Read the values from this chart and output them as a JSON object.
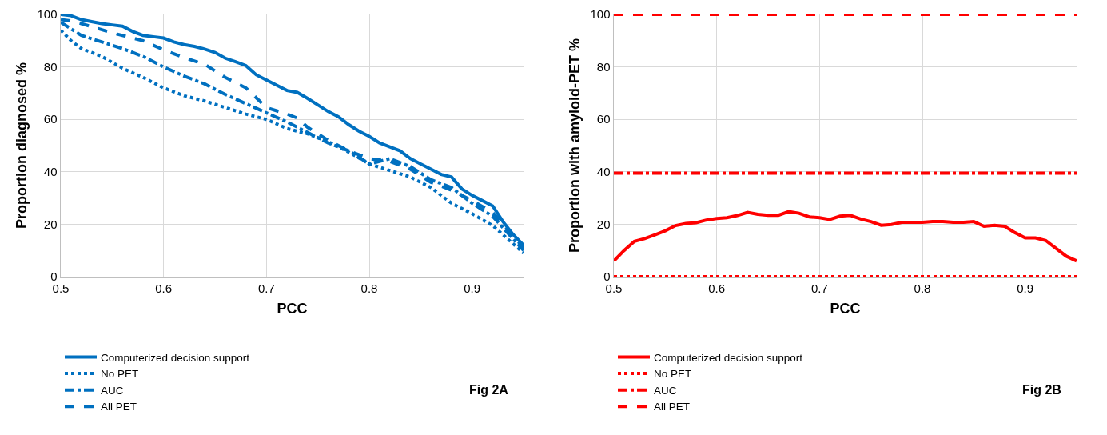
{
  "chart_data": [
    {
      "type": "line",
      "xlabel": "PCC",
      "ylabel": "Proportion diagnosed %",
      "xlim": [
        0.5,
        0.95
      ],
      "xticks": [
        0.5,
        0.6,
        0.7,
        0.8,
        0.9
      ],
      "ylim": [
        0,
        100
      ],
      "yticks": [
        0,
        20,
        40,
        60,
        80,
        100
      ],
      "grid": true,
      "legend": "bottom left",
      "marker": "none",
      "annotations": [
        "Fig 2A"
      ],
      "series": [
        {
          "name": "Computerized decision support",
          "color": "#0070c0",
          "line_style": "solid",
          "x": [
            0.5,
            0.51,
            0.52,
            0.54,
            0.55,
            0.56,
            0.57,
            0.58,
            0.59,
            0.6,
            0.61,
            0.62,
            0.63,
            0.64,
            0.65,
            0.66,
            0.67,
            0.68,
            0.69,
            0.7,
            0.71,
            0.72,
            0.73,
            0.74,
            0.75,
            0.76,
            0.77,
            0.78,
            0.79,
            0.8,
            0.81,
            0.82,
            0.83,
            0.84,
            0.85,
            0.86,
            0.87,
            0.88,
            0.89,
            0.9,
            0.91,
            0.92,
            0.93,
            0.94,
            0.95
          ],
          "values": [
            100,
            99.5,
            98,
            96.5,
            96,
            95.5,
            93.5,
            92,
            91.5,
            91,
            89.5,
            88.5,
            87.8,
            86.8,
            85.5,
            83.3,
            82,
            80.5,
            77,
            75,
            73,
            71,
            70.3,
            68,
            65.5,
            63,
            61,
            58,
            55.5,
            53.5,
            51,
            49.5,
            48,
            45,
            43,
            41,
            39,
            38,
            33.5,
            31,
            29,
            27,
            21,
            16,
            12
          ]
        },
        {
          "name": "No PET",
          "color": "#0070c0",
          "line_style": "dotted",
          "x": [
            0.5,
            0.51,
            0.52,
            0.54,
            0.56,
            0.58,
            0.6,
            0.62,
            0.64,
            0.66,
            0.68,
            0.7,
            0.72,
            0.74,
            0.76,
            0.78,
            0.8,
            0.82,
            0.84,
            0.86,
            0.88,
            0.9,
            0.92,
            0.95
          ],
          "values": [
            94,
            90,
            87,
            84,
            79.5,
            76,
            72,
            69,
            67,
            64.5,
            62,
            60,
            56.5,
            54.5,
            51.5,
            47.5,
            43,
            40.5,
            38,
            34,
            28,
            24,
            19.5,
            9
          ]
        },
        {
          "name": "AUC",
          "color": "#0070c0",
          "line_style": "dashdot",
          "x": [
            0.5,
            0.52,
            0.54,
            0.56,
            0.58,
            0.6,
            0.62,
            0.64,
            0.66,
            0.68,
            0.7,
            0.72,
            0.74,
            0.76,
            0.78,
            0.8,
            0.82,
            0.84,
            0.86,
            0.88,
            0.9,
            0.92,
            0.95
          ],
          "values": [
            97,
            92,
            89.5,
            87,
            84,
            80,
            76.5,
            73.5,
            69.5,
            66,
            62.5,
            59,
            55,
            51,
            48,
            43,
            45,
            42,
            37,
            34,
            28,
            23,
            10
          ]
        },
        {
          "name": "All PET",
          "color": "#0070c0",
          "line_style": "dashed",
          "x": [
            0.5,
            0.51,
            0.52,
            0.55,
            0.58,
            0.6,
            0.62,
            0.64,
            0.66,
            0.68,
            0.7,
            0.72,
            0.73,
            0.74,
            0.76,
            0.78,
            0.8,
            0.82,
            0.84,
            0.86,
            0.88,
            0.9,
            0.92,
            0.95
          ],
          "values": [
            98,
            97.5,
            96.5,
            93,
            90,
            86.5,
            83.5,
            81,
            76,
            72,
            64.5,
            62,
            60.5,
            57,
            52,
            48,
            45,
            44,
            41,
            36,
            33,
            29,
            24.5,
            11
          ]
        }
      ]
    },
    {
      "type": "line",
      "xlabel": "PCC",
      "ylabel": "Proportion with amyloid-PET %",
      "xlim": [
        0.5,
        0.95
      ],
      "xticks": [
        0.5,
        0.6,
        0.7,
        0.8,
        0.9
      ],
      "ylim": [
        0,
        100
      ],
      "yticks": [
        0,
        20,
        40,
        60,
        80,
        100
      ],
      "grid": true,
      "legend": "bottom left",
      "marker": "none",
      "annotations": [
        "Fig 2B"
      ],
      "series": [
        {
          "name": "Computerized decision support",
          "color": "#ff0000",
          "line_style": "solid",
          "x": [
            0.5,
            0.51,
            0.52,
            0.53,
            0.54,
            0.55,
            0.56,
            0.57,
            0.58,
            0.59,
            0.6,
            0.61,
            0.62,
            0.63,
            0.64,
            0.65,
            0.66,
            0.67,
            0.68,
            0.69,
            0.7,
            0.71,
            0.72,
            0.73,
            0.74,
            0.75,
            0.76,
            0.77,
            0.78,
            0.79,
            0.8,
            0.81,
            0.82,
            0.83,
            0.84,
            0.85,
            0.86,
            0.87,
            0.88,
            0.89,
            0.9,
            0.91,
            0.92,
            0.93,
            0.94,
            0.95
          ],
          "values": [
            6,
            10,
            13.5,
            14.5,
            16,
            17.5,
            19.5,
            20.3,
            20.6,
            21.6,
            22.2,
            22.5,
            23.3,
            24.5,
            23.8,
            23.4,
            23.4,
            24.8,
            24.2,
            22.8,
            22.5,
            21.8,
            23.1,
            23.4,
            22,
            21,
            19.6,
            19.9,
            20.7,
            20.7,
            20.7,
            21,
            21,
            20.7,
            20.7,
            21,
            19.2,
            19.6,
            19.2,
            16.8,
            14.8,
            14.8,
            13.8,
            10.8,
            7.8,
            6
          ]
        },
        {
          "name": "No PET",
          "color": "#ff0000",
          "line_style": "dotted",
          "x": [
            0.5,
            0.95
          ],
          "values": [
            0,
            0
          ]
        },
        {
          "name": "AUC",
          "color": "#ff0000",
          "line_style": "dashdot",
          "x": [
            0.5,
            0.95
          ],
          "values": [
            39.5,
            39.5
          ]
        },
        {
          "name": "All PET",
          "color": "#ff0000",
          "line_style": "dashed",
          "x": [
            0.5,
            0.95
          ],
          "values": [
            100,
            100
          ]
        }
      ]
    }
  ]
}
